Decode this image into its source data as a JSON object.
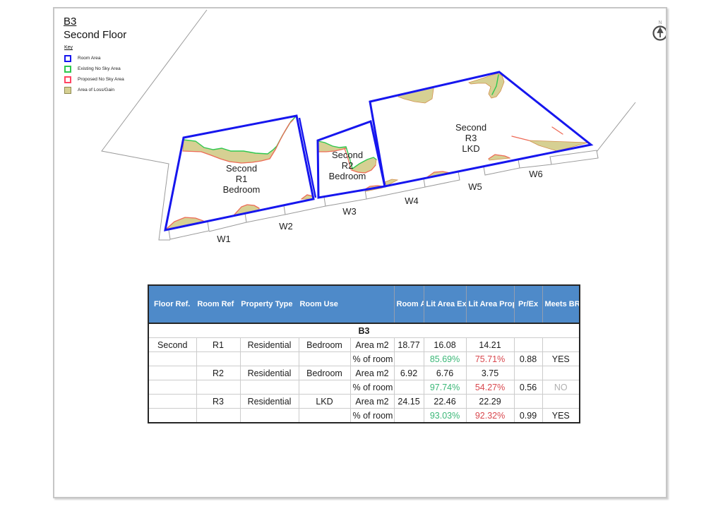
{
  "page": {
    "title_code": "B3",
    "title_floor": "Second Floor",
    "north_label": "N"
  },
  "legend": {
    "title": "Key",
    "items": [
      {
        "label": "Room Area",
        "swatch": "room"
      },
      {
        "label": "Existing No Sky Area",
        "swatch": "existing"
      },
      {
        "label": "Proposed No Sky Area",
        "swatch": "proposed"
      },
      {
        "label": "Area of Loss/Gain",
        "swatch": "lossgain"
      }
    ]
  },
  "plan": {
    "rooms": [
      {
        "lines": [
          "Second",
          "R1",
          "Bedroom"
        ]
      },
      {
        "lines": [
          "Second",
          "R2",
          "Bedroom"
        ]
      },
      {
        "lines": [
          "Second",
          "R3",
          "LKD"
        ]
      }
    ],
    "windows": [
      "W1",
      "W2",
      "W3",
      "W4",
      "W5",
      "W6"
    ]
  },
  "table": {
    "header": {
      "left": [
        "Floor Ref.",
        "Room Ref",
        "Property Type",
        "Room Use"
      ],
      "right": [
        "Room Area",
        "Lit Area Existing",
        "Lit Area Proposed",
        "Pr/Ex",
        "Meets BRE Criteria"
      ]
    },
    "group_label": "B3",
    "rows": [
      [
        "Second",
        "R1",
        "Residential",
        "Bedroom",
        "Area m2",
        "18.77",
        "16.08",
        "14.21",
        "",
        ""
      ],
      [
        "",
        "",
        "",
        "",
        "% of room",
        "",
        {
          "t": "85.69%",
          "c": "green"
        },
        {
          "t": "75.71%",
          "c": "red"
        },
        "0.88",
        "YES"
      ],
      [
        "",
        "R2",
        "Residential",
        "Bedroom",
        "Area m2",
        "6.92",
        "6.76",
        "3.75",
        "",
        ""
      ],
      [
        "",
        "",
        "",
        "",
        "% of room",
        "",
        {
          "t": "97.74%",
          "c": "green"
        },
        {
          "t": "54.27%",
          "c": "red"
        },
        "0.56",
        {
          "t": "NO",
          "c": "muted"
        }
      ],
      [
        "",
        "R3",
        "Residential",
        "LKD",
        "Area m2",
        "24.15",
        "22.46",
        "22.29",
        "",
        ""
      ],
      [
        "",
        "",
        "",
        "",
        "% of room",
        "",
        {
          "t": "93.03%",
          "c": "green"
        },
        {
          "t": "92.32%",
          "c": "red"
        },
        "0.99",
        "YES"
      ]
    ]
  },
  "colors": {
    "header_blue": "#4e8ac9",
    "green_text": "#3cb878",
    "red_text": "#d9484e",
    "muted_text": "#b0b0b0",
    "room_blue": "#1616ee",
    "existing_green": "#2fc84f",
    "proposed_red": "#ee6a56",
    "legend_red": "#ff4563",
    "loss_olive": "#d6d093",
    "blob_edge": "#d3904f"
  }
}
